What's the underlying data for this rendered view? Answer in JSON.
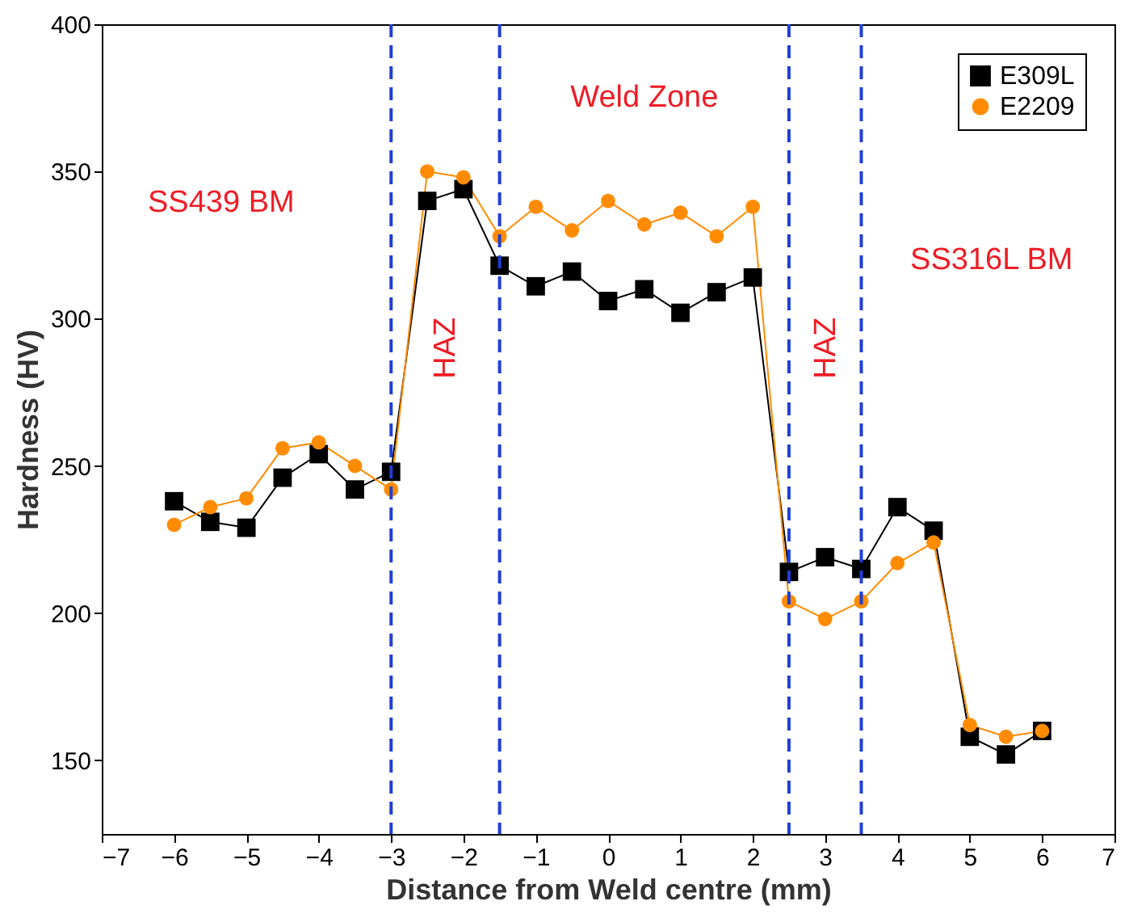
{
  "chart_data": {
    "type": "line",
    "xlabel": "Distance from Weld centre (mm)",
    "ylabel": "Hardness (HV)",
    "x": [
      -6,
      -5.5,
      -5,
      -4.5,
      -4,
      -3.5,
      -3,
      -2.5,
      -2,
      -1.5,
      -1,
      -0.5,
      0,
      0.5,
      1,
      1.5,
      2,
      2.5,
      3,
      3.5,
      4,
      4.5,
      5,
      5.5,
      6
    ],
    "series": [
      {
        "name": "E309L",
        "color": "#000000",
        "marker": "square",
        "values": [
          238,
          231,
          229,
          246,
          254,
          242,
          248,
          340,
          344,
          318,
          311,
          316,
          306,
          310,
          302,
          309,
          314,
          214,
          219,
          215,
          236,
          228,
          158,
          152,
          160
        ]
      },
      {
        "name": "E2209",
        "color": "#ff8c00",
        "marker": "circle",
        "values": [
          230,
          236,
          239,
          256,
          258,
          250,
          242,
          350,
          348,
          328,
          338,
          330,
          340,
          332,
          336,
          328,
          338,
          204,
          198,
          204,
          217,
          224,
          162,
          158,
          160
        ]
      }
    ],
    "xlim": [
      -7,
      7
    ],
    "xticks": [
      -7,
      -6,
      -5,
      -4,
      -3,
      -2,
      -1,
      0,
      1,
      2,
      3,
      4,
      5,
      6,
      7
    ],
    "ylim": [
      125,
      400
    ],
    "yticks": [
      150,
      200,
      250,
      300,
      350,
      400
    ],
    "ref_lines": [
      {
        "axis": "x",
        "value": -3,
        "color": "#1f3fd6",
        "line_style": "dashed"
      },
      {
        "axis": "x",
        "value": -1.5,
        "color": "#1f3fd6",
        "line_style": "dashed"
      },
      {
        "axis": "x",
        "value": 2.5,
        "color": "#1f3fd6",
        "line_style": "dashed"
      },
      {
        "axis": "x",
        "value": 3.5,
        "color": "#1f3fd6",
        "line_style": "dashed"
      }
    ],
    "annotations": [
      "SS439 BM",
      "HAZ",
      "Weld Zone",
      "HAZ",
      "SS316L BM"
    ],
    "legend": "top right",
    "grid": false,
    "line_style": "solid"
  }
}
